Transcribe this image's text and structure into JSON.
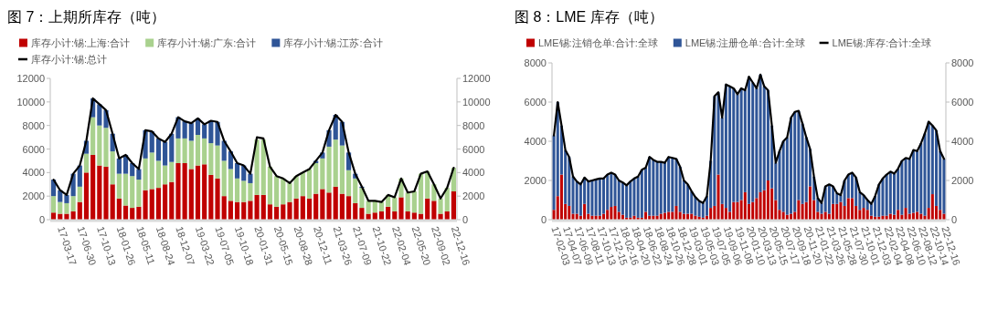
{
  "chart_data": [
    {
      "type": "bar",
      "title": "图 7：上期所库存（吨）",
      "stacked": true,
      "legend": "top",
      "ylim": [
        0,
        12000
      ],
      "yticks": [
        0,
        2000,
        4000,
        6000,
        8000,
        10000,
        12000
      ],
      "y2lim": [
        0,
        12000
      ],
      "y2ticks": [
        0,
        2000,
        4000,
        6000,
        8000,
        10000,
        12000
      ],
      "categories": [
        null,
        "17-03-17",
        null,
        null,
        "17-06-30",
        null,
        null,
        "17-10-13",
        null,
        null,
        "18-01-26",
        null,
        null,
        "18-05-11",
        null,
        null,
        "18-08-24",
        null,
        null,
        "18-12-07",
        null,
        null,
        "19-03-22",
        null,
        null,
        "19-07-05",
        null,
        null,
        "19-10-18",
        null,
        null,
        "20-01-31",
        null,
        null,
        "20-05-15",
        null,
        null,
        "20-08-28",
        null,
        null,
        "20-12-11",
        null,
        null,
        "21-03-26",
        null,
        null,
        "21-07-09",
        null,
        null,
        "21-10-22",
        null,
        null,
        "22-02-04",
        null,
        null,
        "22-05-20",
        null,
        null,
        "22-09-02",
        null,
        null,
        "22-12-16"
      ],
      "series": [
        {
          "name": "库存小计:锡:上海:合计",
          "color": "#c00000",
          "values": [
            600,
            500,
            500,
            700,
            1500,
            4000,
            5500,
            4600,
            4500,
            3000,
            1800,
            1200,
            1000,
            1100,
            2500,
            2600,
            2700,
            3000,
            3200,
            4800,
            4800,
            4300,
            4600,
            4700,
            3800,
            3500,
            2000,
            1600,
            1500,
            1500,
            1600,
            2100,
            2100,
            1300,
            1100,
            1300,
            1500,
            1800,
            2000,
            1800,
            2200,
            2600,
            2300,
            2800,
            2200,
            2000,
            1400,
            1000,
            500,
            600,
            700,
            1100,
            700,
            1900,
            700,
            600,
            500,
            1800,
            1600,
            500,
            700,
            2400
          ]
        },
        {
          "name": "库存小计:锡:广东:合计",
          "color": "#a9d18e",
          "values": [
            1400,
            1000,
            900,
            1300,
            1300,
            1600,
            3200,
            3400,
            3300,
            2800,
            2100,
            2700,
            2700,
            2300,
            2700,
            3100,
            2300,
            1600,
            1700,
            2100,
            2100,
            2400,
            2600,
            2200,
            2700,
            2800,
            3000,
            2700,
            2000,
            1800,
            1500,
            4700,
            4700,
            3200,
            2600,
            2200,
            1600,
            1900,
            2000,
            2500,
            2600,
            2600,
            3900,
            4000,
            4100,
            2200,
            2100,
            1700,
            1100,
            1000,
            800,
            1000,
            1200,
            1600,
            1600,
            1800,
            3400,
            2300,
            1400,
            1300,
            2000,
            2000
          ]
        },
        {
          "name": "库存小计:锡:江苏:合计",
          "color": "#2f5597",
          "values": [
            1400,
            1000,
            700,
            1900,
            1800,
            1100,
            1600,
            1800,
            1500,
            1500,
            1300,
            1600,
            1100,
            900,
            2400,
            1800,
            1900,
            2000,
            2400,
            1800,
            1450,
            1500,
            1400,
            1200,
            1900,
            2000,
            1700,
            1500,
            1300,
            1300,
            800,
            null,
            null,
            0,
            0,
            0,
            0,
            0,
            0,
            0,
            200,
            500,
            1400,
            2100,
            2000,
            1500,
            400,
            100,
            0,
            0,
            0,
            0,
            0,
            0,
            0,
            0,
            0,
            0,
            0,
            0,
            0,
            0
          ]
        },
        {
          "name": "库存小计:锡:总计",
          "type": "line",
          "color": "#000000",
          "values": [
            3400,
            2500,
            2100,
            3900,
            4600,
            6700,
            10300,
            9800,
            9300,
            7300,
            5200,
            5500,
            4800,
            4300,
            7600,
            7500,
            6900,
            6600,
            7300,
            8700,
            8350,
            8200,
            8600,
            8100,
            8400,
            8300,
            6700,
            5800,
            4800,
            4600,
            3900,
            7000,
            6900,
            4500,
            3700,
            3500,
            3100,
            3700,
            4000,
            4300,
            5000,
            5700,
            7600,
            8900,
            8300,
            5700,
            3900,
            2800,
            1600,
            1600,
            1500,
            2100,
            1900,
            3500,
            2300,
            2400,
            3900,
            4100,
            3000,
            1800,
            2700,
            4400
          ]
        }
      ]
    },
    {
      "type": "bar",
      "title": "图 8：LME 库存（吨）",
      "stacked": true,
      "legend": "top",
      "ylim": [
        0,
        8000
      ],
      "yticks": [
        0,
        2000,
        4000,
        6000,
        8000
      ],
      "y2lim": [
        0,
        8000
      ],
      "y2ticks": [
        0,
        2000,
        4000,
        6000,
        8000
      ],
      "categories": [
        "17-02-03",
        null,
        null,
        "17-04-07",
        null,
        null,
        "17-06-09",
        null,
        null,
        "17-08-11",
        null,
        null,
        "17-10-13",
        null,
        null,
        "17-12-15",
        null,
        null,
        "18-02-16",
        null,
        null,
        "18-04-20",
        null,
        null,
        "18-06-22",
        null,
        null,
        "18-08-24",
        null,
        null,
        "18-10-26",
        null,
        null,
        "18-12-28",
        null,
        null,
        "19-03-01",
        null,
        null,
        "19-05-03",
        null,
        null,
        "19-07-05",
        null,
        null,
        "19-09-06",
        null,
        null,
        "19-11-08",
        null,
        null,
        "20-01-10",
        null,
        null,
        "20-03-13",
        null,
        null,
        "20-05-15",
        null,
        null,
        "20-07-17",
        null,
        null,
        "20-09-18",
        null,
        null,
        "20-11-20",
        null,
        null,
        "21-01-22",
        null,
        null,
        "21-03-26",
        null,
        null,
        "21-05-28",
        null,
        null,
        "21-07-30",
        null,
        null,
        "21-10-01",
        null,
        null,
        "21-12-03",
        null,
        null,
        "22-02-04",
        null,
        null,
        "22-04-08",
        null,
        null,
        "22-06-10",
        null,
        null,
        "22-08-12",
        null,
        null,
        "22-10-14",
        null,
        null,
        "22-12-16"
      ],
      "series": [
        {
          "name": "LME锡:注销仓单:合计:全球",
          "color": "#c00000",
          "values": [
            500,
            1200,
            2300,
            800,
            700,
            300,
            300,
            200,
            800,
            300,
            200,
            200,
            200,
            300,
            500,
            650,
            700,
            400,
            250,
            100,
            100,
            200,
            100,
            100,
            400,
            200,
            200,
            200,
            300,
            350,
            400,
            400,
            700,
            400,
            300,
            300,
            300,
            200,
            150,
            100,
            200,
            600,
            700,
            2300,
            800,
            600,
            400,
            900,
            900,
            1000,
            1400,
            800,
            900,
            1100,
            1400,
            1500,
            2000,
            1600,
            1000,
            500,
            400,
            250,
            300,
            400,
            1000,
            800,
            900,
            1700,
            1000,
            400,
            300,
            400,
            300,
            800,
            800,
            900,
            700,
            1100,
            1100,
            700,
            500,
            600,
            500,
            200,
            150,
            150,
            200,
            200,
            300,
            250,
            500,
            250,
            600,
            300,
            350,
            400,
            300,
            200,
            600,
            1300,
            700,
            500,
            300
          ]
        },
        {
          "name": "LME锡:注册仓单:合计:全球",
          "color": "#2f5597",
          "values": [
            3800,
            4800,
            2500,
            2750,
            2500,
            1900,
            1650,
            1600,
            1350,
            1650,
            1800,
            1850,
            1900,
            1800,
            1800,
            1750,
            1600,
            1600,
            1650,
            1650,
            1850,
            1900,
            2100,
            2450,
            2250,
            3000,
            2850,
            2750,
            2650,
            2550,
            2800,
            2750,
            2400,
            2300,
            1700,
            1500,
            1150,
            950,
            800,
            750,
            1000,
            2400,
            5600,
            4200,
            4400,
            6300,
            6400,
            5800,
            5500,
            5700,
            5200,
            6500,
            6100,
            5600,
            6000,
            5300,
            4600,
            3200,
            1900,
            3000,
            3600,
            3950,
            4900,
            5100,
            4550,
            4100,
            3300,
            1900,
            1200,
            700,
            550,
            1300,
            1500,
            900,
            550,
            350,
            1300,
            1200,
            1300,
            1450,
            900,
            650,
            500,
            600,
            1050,
            1650,
            1900,
            2100,
            2150,
            2100,
            2100,
            2750,
            2550,
            2800,
            3200,
            3100,
            3600,
            4200,
            4400,
            3500,
            3850,
            3000,
            2800
          ]
        },
        {
          "name": "LME锡:库存:合计:全球",
          "type": "line",
          "color": "#000000",
          "values": [
            4300,
            6000,
            4800,
            3550,
            3200,
            2200,
            1950,
            1800,
            2150,
            1950,
            2000,
            2050,
            2100,
            2100,
            2300,
            2400,
            2300,
            2000,
            1900,
            1750,
            1950,
            2100,
            2200,
            2550,
            2650,
            3200,
            3050,
            2950,
            2950,
            2900,
            3200,
            3150,
            3100,
            2700,
            2000,
            1800,
            1450,
            1150,
            950,
            850,
            1200,
            3000,
            6300,
            6500,
            5200,
            6900,
            6800,
            6700,
            6400,
            6700,
            6600,
            7300,
            7000,
            6700,
            7400,
            6800,
            6600,
            4800,
            2900,
            3500,
            4000,
            4200,
            5200,
            5500,
            5550,
            4900,
            4200,
            3600,
            2200,
            1100,
            850,
            1700,
            1800,
            1700,
            1350,
            1250,
            2000,
            2300,
            2400,
            2150,
            1400,
            1250,
            1000,
            800,
            1200,
            1800,
            2100,
            2300,
            2450,
            2350,
            2600,
            3000,
            3150,
            3100,
            3550,
            3500,
            3900,
            4400,
            5000,
            4800,
            4550,
            3500,
            3100
          ]
        }
      ]
    }
  ]
}
